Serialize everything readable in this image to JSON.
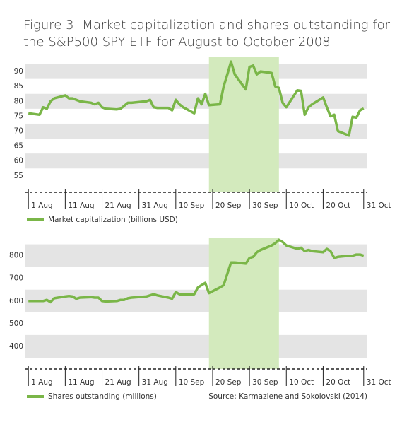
{
  "title": [
    "Figure 3: Market capitalization and shares outstanding for",
    "the S&P500 SPY ETF for August to October 2008"
  ],
  "source": "Source: Karmaziene and Sokolovski (2014)",
  "chart_data": [
    {
      "type": "line",
      "x": [
        "2008-08-01",
        "2008-08-04",
        "2008-08-05",
        "2008-08-06",
        "2008-08-07",
        "2008-08-08",
        "2008-08-11",
        "2008-08-12",
        "2008-08-13",
        "2008-08-14",
        "2008-08-15",
        "2008-08-18",
        "2008-08-19",
        "2008-08-20",
        "2008-08-21",
        "2008-08-22",
        "2008-08-25",
        "2008-08-26",
        "2008-08-27",
        "2008-08-28",
        "2008-08-29",
        "2008-09-02",
        "2008-09-03",
        "2008-09-04",
        "2008-09-05",
        "2008-09-08",
        "2008-09-09",
        "2008-09-10",
        "2008-09-11",
        "2008-09-12",
        "2008-09-15",
        "2008-09-16",
        "2008-09-17",
        "2008-09-18",
        "2008-09-19",
        "2008-09-22",
        "2008-09-23",
        "2008-09-24",
        "2008-09-25",
        "2008-09-26",
        "2008-09-29",
        "2008-09-30",
        "2008-10-01",
        "2008-10-02",
        "2008-10-03",
        "2008-10-06",
        "2008-10-07",
        "2008-10-08",
        "2008-10-09",
        "2008-10-10",
        "2008-10-13",
        "2008-10-14",
        "2008-10-15",
        "2008-10-16",
        "2008-10-17",
        "2008-10-20",
        "2008-10-21",
        "2008-10-22",
        "2008-10-23",
        "2008-10-24",
        "2008-10-27",
        "2008-10-28",
        "2008-10-29",
        "2008-10-30",
        "2008-10-31"
      ],
      "series": [
        {
          "name": "Market capitalization (billions USD)",
          "color": "#7ab648",
          "values": [
            76,
            75.5,
            78,
            77.5,
            80,
            81,
            82,
            81,
            81,
            80.5,
            80,
            79.5,
            79,
            79.5,
            78,
            77.5,
            77.3,
            77.5,
            78.5,
            79.5,
            79.5,
            80,
            80.5,
            78,
            77.8,
            77.8,
            77,
            80.5,
            79,
            78,
            76,
            81,
            79,
            82.5,
            78.7,
            79,
            85,
            89,
            93.3,
            89,
            84,
            91.5,
            92,
            89,
            90,
            89.5,
            85,
            84.5,
            79.5,
            78,
            83.7,
            83.5,
            75.5,
            78,
            79,
            81.3,
            78,
            75,
            75.5,
            70,
            68.5,
            74.8,
            74.5,
            77,
            77.6
          ]
        }
      ],
      "ylim": [
        49.5,
        95
      ],
      "yticks": [
        55,
        60,
        65,
        70,
        75,
        80,
        85,
        90
      ],
      "xlim": [
        "2008-07-31",
        "2008-11-01"
      ],
      "xticks": [
        {
          "value": "2008-08-01",
          "label": "1 Aug"
        },
        {
          "value": "2008-08-11",
          "label": "11 Aug"
        },
        {
          "value": "2008-08-21",
          "label": "21 Aug"
        },
        {
          "value": "2008-08-31",
          "label": "31 Aug"
        },
        {
          "value": "2008-09-10",
          "label": "10 Sep"
        },
        {
          "value": "2008-09-20",
          "label": "20 Sep"
        },
        {
          "value": "2008-09-30",
          "label": "30 Sep"
        },
        {
          "value": "2008-10-10",
          "label": "10 Oct"
        },
        {
          "value": "2008-10-20",
          "label": "20 Oct"
        },
        {
          "value": "2008-10-31",
          "label": "31 Oct"
        }
      ],
      "highlight": [
        "2008-09-19",
        "2008-10-08"
      ]
    },
    {
      "type": "line",
      "x": [
        "2008-08-01",
        "2008-08-04",
        "2008-08-05",
        "2008-08-06",
        "2008-08-07",
        "2008-08-08",
        "2008-08-11",
        "2008-08-12",
        "2008-08-13",
        "2008-08-14",
        "2008-08-15",
        "2008-08-18",
        "2008-08-19",
        "2008-08-20",
        "2008-08-21",
        "2008-08-22",
        "2008-08-25",
        "2008-08-26",
        "2008-08-27",
        "2008-08-28",
        "2008-08-29",
        "2008-09-02",
        "2008-09-03",
        "2008-09-04",
        "2008-09-05",
        "2008-09-08",
        "2008-09-09",
        "2008-09-10",
        "2008-09-11",
        "2008-09-12",
        "2008-09-15",
        "2008-09-16",
        "2008-09-17",
        "2008-09-18",
        "2008-09-19",
        "2008-09-22",
        "2008-09-23",
        "2008-09-24",
        "2008-09-25",
        "2008-09-26",
        "2008-09-29",
        "2008-09-30",
        "2008-10-01",
        "2008-10-02",
        "2008-10-03",
        "2008-10-06",
        "2008-10-07",
        "2008-10-08",
        "2008-10-09",
        "2008-10-10",
        "2008-10-13",
        "2008-10-14",
        "2008-10-15",
        "2008-10-16",
        "2008-10-17",
        "2008-10-20",
        "2008-10-21",
        "2008-10-22",
        "2008-10-23",
        "2008-10-24",
        "2008-10-27",
        "2008-10-28",
        "2008-10-29",
        "2008-10-30",
        "2008-10-31"
      ],
      "series": [
        {
          "name": "Shares outstanding (millions)",
          "color": "#7ab648",
          "values": [
            600,
            600,
            600,
            605,
            595,
            612,
            620,
            622,
            620,
            610,
            615,
            617,
            615,
            615,
            600,
            598,
            600,
            605,
            605,
            612,
            615,
            620,
            625,
            630,
            625,
            615,
            610,
            640,
            630,
            630,
            630,
            660,
            670,
            680,
            635,
            660,
            670,
            720,
            770,
            770,
            765,
            790,
            795,
            815,
            825,
            845,
            855,
            870,
            860,
            845,
            830,
            835,
            820,
            825,
            820,
            815,
            830,
            820,
            790,
            795,
            800,
            800,
            805,
            805,
            800
          ]
        }
      ],
      "ylim": [
        300,
        880
      ],
      "yticks": [
        400,
        500,
        600,
        700,
        800
      ],
      "xlim": [
        "2008-07-31",
        "2008-11-01"
      ],
      "xticks": [
        {
          "value": "2008-08-01",
          "label": "1 Aug"
        },
        {
          "value": "2008-08-11",
          "label": "11 Aug"
        },
        {
          "value": "2008-08-21",
          "label": "21 Aug"
        },
        {
          "value": "2008-08-31",
          "label": "31 Aug"
        },
        {
          "value": "2008-09-10",
          "label": "10 Sep"
        },
        {
          "value": "2008-09-20",
          "label": "20 Sep"
        },
        {
          "value": "2008-09-30",
          "label": "30 Sep"
        },
        {
          "value": "2008-10-10",
          "label": "10 Oct"
        },
        {
          "value": "2008-10-20",
          "label": "20 Oct"
        },
        {
          "value": "2008-10-31",
          "label": "31 Oct"
        }
      ],
      "highlight": [
        "2008-09-19",
        "2008-10-08"
      ]
    }
  ]
}
